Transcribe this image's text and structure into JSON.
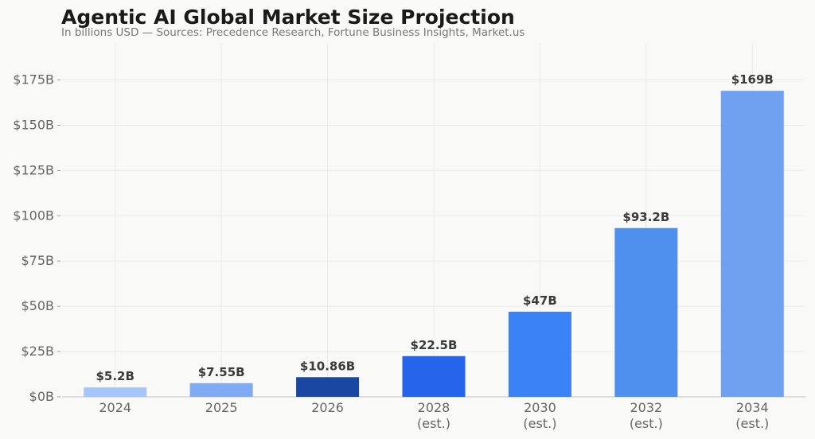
{
  "chart_data": {
    "type": "bar",
    "title": "Agentic AI Global Market Size Projection",
    "subtitle": "In billions USD — Sources: Precedence Research, Fortune Business Insights, Market.us",
    "categories": [
      [
        "2024"
      ],
      [
        "2025"
      ],
      [
        "2026"
      ],
      [
        "2028",
        "(est.)"
      ],
      [
        "2030",
        "(est.)"
      ],
      [
        "2032",
        "(est.)"
      ],
      [
        "2034",
        "(est.)"
      ]
    ],
    "values": [
      5.2,
      7.55,
      10.86,
      22.5,
      47,
      93.2,
      169
    ],
    "data_labels": [
      "$5.2B",
      "$7.55B",
      "$10.86B",
      "$22.5B",
      "$47B",
      "$93.2B",
      "$169B"
    ],
    "colors": [
      "#a5c6fa",
      "#7fabf4",
      "#1a47a0",
      "#2563eb",
      "#3b82f6",
      "#4f8fee",
      "#6fa1f0"
    ],
    "yticks": [
      0,
      25,
      50,
      75,
      100,
      125,
      150,
      175
    ],
    "ytick_labels": [
      "$0B",
      "$25B",
      "$50B",
      "$75B",
      "$100B",
      "$125B",
      "$150B",
      "$175B"
    ],
    "ylim": [
      0,
      195
    ],
    "xlabel": "",
    "ylabel": "",
    "grid": true
  }
}
